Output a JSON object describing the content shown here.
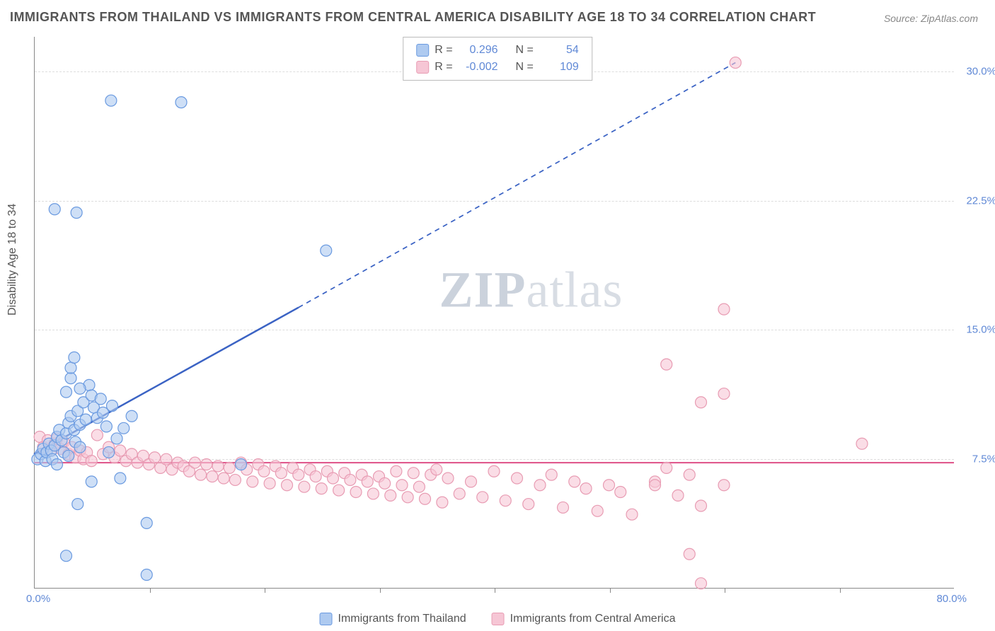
{
  "title": "IMMIGRANTS FROM THAILAND VS IMMIGRANTS FROM CENTRAL AMERICA DISABILITY AGE 18 TO 34 CORRELATION CHART",
  "source": "Source: ZipAtlas.com",
  "watermark_a": "ZIP",
  "watermark_b": "atlas",
  "y_axis_title": "Disability Age 18 to 34",
  "chart": {
    "type": "scatter",
    "xlim": [
      0,
      80
    ],
    "ylim": [
      0,
      32
    ],
    "x_origin_label": "0.0%",
    "x_max_label": "80.0%",
    "x_tick_positions": [
      10,
      20,
      30,
      40,
      50,
      60,
      70
    ],
    "y_ticks": [
      {
        "v": 7.5,
        "label": "7.5%"
      },
      {
        "v": 15.0,
        "label": "15.0%"
      },
      {
        "v": 22.5,
        "label": "22.5%"
      },
      {
        "v": 30.0,
        "label": "30.0%"
      }
    ],
    "grid_color": "#dddddd",
    "background_color": "#ffffff",
    "marker_radius": 8,
    "marker_stroke_width": 1.2,
    "marker_fill_opacity": 0.25,
    "series": [
      {
        "name": "Immigrants from Thailand",
        "color_stroke": "#6a9ae0",
        "color_fill": "#aecaf0",
        "R": "0.296",
        "N": "54",
        "trend": {
          "color": "#3b63c4",
          "width": 2.5,
          "solid_to_x": 23,
          "solid_to_y": 16.3,
          "dash_to_x": 61,
          "dash_to_y": 30.5,
          "y0": 7.8
        },
        "points": [
          [
            0.3,
            7.5
          ],
          [
            0.6,
            7.8
          ],
          [
            0.8,
            8.1
          ],
          [
            1.0,
            7.4
          ],
          [
            1.1,
            7.9
          ],
          [
            1.3,
            8.4
          ],
          [
            1.5,
            8.0
          ],
          [
            1.6,
            7.5
          ],
          [
            1.8,
            8.3
          ],
          [
            2.0,
            8.8
          ],
          [
            2.0,
            7.2
          ],
          [
            2.2,
            9.2
          ],
          [
            2.4,
            8.6
          ],
          [
            2.6,
            7.9
          ],
          [
            2.8,
            9.0
          ],
          [
            3.0,
            7.7
          ],
          [
            3.0,
            9.6
          ],
          [
            3.2,
            10.0
          ],
          [
            3.5,
            9.2
          ],
          [
            3.6,
            8.5
          ],
          [
            3.8,
            10.3
          ],
          [
            4.0,
            9.5
          ],
          [
            4.0,
            8.2
          ],
          [
            4.3,
            10.8
          ],
          [
            4.5,
            9.8
          ],
          [
            4.8,
            11.8
          ],
          [
            5.0,
            11.2
          ],
          [
            5.2,
            10.5
          ],
          [
            5.5,
            9.9
          ],
          [
            5.8,
            11.0
          ],
          [
            6.0,
            10.2
          ],
          [
            6.3,
            9.4
          ],
          [
            6.8,
            10.6
          ],
          [
            7.2,
            8.7
          ],
          [
            7.8,
            9.3
          ],
          [
            8.5,
            10.0
          ],
          [
            3.2,
            12.2
          ],
          [
            3.2,
            12.8
          ],
          [
            3.5,
            13.4
          ],
          [
            2.8,
            11.4
          ],
          [
            4.0,
            11.6
          ],
          [
            1.8,
            22.0
          ],
          [
            3.7,
            21.8
          ],
          [
            6.7,
            28.3
          ],
          [
            12.8,
            28.2
          ],
          [
            25.4,
            19.6
          ],
          [
            3.8,
            4.9
          ],
          [
            2.8,
            1.9
          ],
          [
            5.0,
            6.2
          ],
          [
            7.5,
            6.4
          ],
          [
            9.8,
            3.8
          ],
          [
            9.8,
            0.8
          ],
          [
            18.0,
            7.2
          ],
          [
            6.5,
            7.9
          ]
        ]
      },
      {
        "name": "Immigrants from Central America",
        "color_stroke": "#e89cb3",
        "color_fill": "#f6c6d5",
        "R": "-0.002",
        "N": "109",
        "trend": {
          "color": "#e05a8e",
          "width": 2.2,
          "y_const": 7.3
        },
        "points": [
          [
            0.5,
            8.8
          ],
          [
            0.8,
            8.2
          ],
          [
            1.2,
            8.6
          ],
          [
            1.5,
            8.0
          ],
          [
            1.8,
            8.4
          ],
          [
            2.0,
            8.7
          ],
          [
            2.3,
            8.1
          ],
          [
            2.6,
            8.5
          ],
          [
            3.0,
            7.8
          ],
          [
            3.3,
            8.2
          ],
          [
            3.6,
            7.6
          ],
          [
            4.0,
            8.0
          ],
          [
            4.3,
            7.5
          ],
          [
            4.6,
            7.9
          ],
          [
            5.0,
            7.4
          ],
          [
            5.5,
            8.9
          ],
          [
            6.0,
            7.8
          ],
          [
            6.5,
            8.2
          ],
          [
            7.0,
            7.6
          ],
          [
            7.5,
            8.0
          ],
          [
            8.0,
            7.4
          ],
          [
            8.5,
            7.8
          ],
          [
            9.0,
            7.3
          ],
          [
            9.5,
            7.7
          ],
          [
            10.0,
            7.2
          ],
          [
            10.5,
            7.6
          ],
          [
            11.0,
            7.0
          ],
          [
            11.5,
            7.5
          ],
          [
            12.0,
            6.9
          ],
          [
            12.5,
            7.3
          ],
          [
            13.0,
            7.1
          ],
          [
            13.5,
            6.8
          ],
          [
            14.0,
            7.3
          ],
          [
            14.5,
            6.6
          ],
          [
            15.0,
            7.2
          ],
          [
            15.5,
            6.5
          ],
          [
            16.0,
            7.1
          ],
          [
            16.5,
            6.4
          ],
          [
            17.0,
            7.0
          ],
          [
            17.5,
            6.3
          ],
          [
            18.0,
            7.3
          ],
          [
            18.5,
            6.9
          ],
          [
            19.0,
            6.2
          ],
          [
            19.5,
            7.2
          ],
          [
            20.0,
            6.8
          ],
          [
            20.5,
            6.1
          ],
          [
            21.0,
            7.1
          ],
          [
            21.5,
            6.7
          ],
          [
            22.0,
            6.0
          ],
          [
            22.5,
            7.0
          ],
          [
            23.0,
            6.6
          ],
          [
            23.5,
            5.9
          ],
          [
            24.0,
            6.9
          ],
          [
            24.5,
            6.5
          ],
          [
            25.0,
            5.8
          ],
          [
            25.5,
            6.8
          ],
          [
            26.0,
            6.4
          ],
          [
            26.5,
            5.7
          ],
          [
            27.0,
            6.7
          ],
          [
            27.5,
            6.3
          ],
          [
            28.0,
            5.6
          ],
          [
            28.5,
            6.6
          ],
          [
            29.0,
            6.2
          ],
          [
            29.5,
            5.5
          ],
          [
            30.0,
            6.5
          ],
          [
            30.5,
            6.1
          ],
          [
            31.0,
            5.4
          ],
          [
            31.5,
            6.8
          ],
          [
            32.0,
            6.0
          ],
          [
            32.5,
            5.3
          ],
          [
            33.0,
            6.7
          ],
          [
            33.5,
            5.9
          ],
          [
            34.0,
            5.2
          ],
          [
            34.5,
            6.6
          ],
          [
            35.0,
            6.9
          ],
          [
            35.5,
            5.0
          ],
          [
            36.0,
            6.4
          ],
          [
            37.0,
            5.5
          ],
          [
            38.0,
            6.2
          ],
          [
            39.0,
            5.3
          ],
          [
            40.0,
            6.8
          ],
          [
            41.0,
            5.1
          ],
          [
            42.0,
            6.4
          ],
          [
            43.0,
            4.9
          ],
          [
            44.0,
            6.0
          ],
          [
            45.0,
            6.6
          ],
          [
            46.0,
            4.7
          ],
          [
            47.0,
            6.2
          ],
          [
            48.0,
            5.8
          ],
          [
            49.0,
            4.5
          ],
          [
            50.0,
            6.0
          ],
          [
            51.0,
            5.6
          ],
          [
            52.0,
            4.3
          ],
          [
            54.0,
            6.2
          ],
          [
            55.0,
            7.0
          ],
          [
            56.0,
            5.4
          ],
          [
            57.0,
            6.6
          ],
          [
            58.0,
            4.8
          ],
          [
            60.0,
            6.0
          ],
          [
            55.0,
            13.0
          ],
          [
            58.0,
            10.8
          ],
          [
            60.0,
            11.3
          ],
          [
            60.0,
            16.2
          ],
          [
            61.0,
            30.5
          ],
          [
            72.0,
            8.4
          ],
          [
            57.0,
            2.0
          ],
          [
            58.0,
            0.3
          ],
          [
            54.0,
            6.0
          ]
        ]
      }
    ]
  },
  "legend": {
    "s1": "Immigrants from Thailand",
    "s2": "Immigrants from Central America"
  },
  "stats_labels": {
    "R": "R =",
    "N": "N ="
  }
}
